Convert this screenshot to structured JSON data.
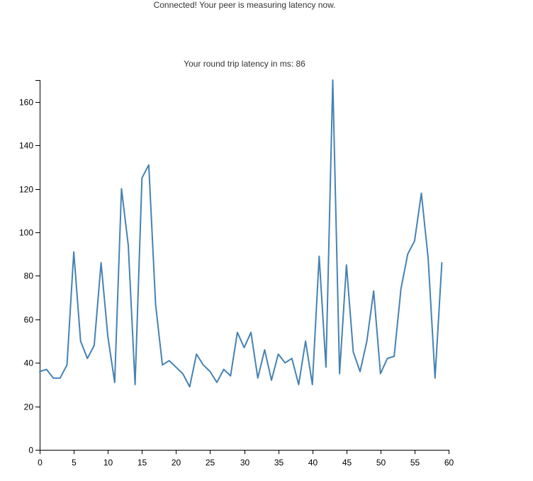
{
  "status": {
    "message": "Connected! Your peer is measuring latency now."
  },
  "chart_data": {
    "type": "line",
    "title": "Your round trip latency in ms: 86",
    "xlabel": "",
    "ylabel": "",
    "xlim": [
      0,
      60
    ],
    "ylim": [
      0,
      170
    ],
    "x_ticks": [
      0,
      5,
      10,
      15,
      20,
      25,
      30,
      35,
      40,
      45,
      50,
      55,
      60
    ],
    "y_ticks": [
      0,
      20,
      40,
      60,
      80,
      100,
      120,
      140,
      160
    ],
    "grid": false,
    "line_color": "#4682b4",
    "series": [
      {
        "x": [
          0,
          1,
          2,
          3,
          4,
          5,
          6,
          7,
          8,
          9,
          10,
          11,
          12,
          13,
          14,
          15,
          16,
          17,
          18,
          19,
          20,
          21,
          22,
          23,
          24,
          25,
          26,
          27,
          28,
          29,
          30,
          31,
          32,
          33,
          34,
          35,
          36,
          37,
          38,
          39,
          40,
          41,
          42,
          43,
          44,
          45,
          46,
          47,
          48,
          49,
          50,
          51,
          52,
          53,
          54,
          55,
          56,
          57,
          58,
          59
        ],
        "values": [
          36,
          37,
          33,
          33,
          39,
          91,
          50,
          42,
          48,
          86,
          52,
          31,
          120,
          94,
          30,
          125,
          131,
          67,
          39,
          41,
          38,
          35,
          29,
          44,
          39,
          36,
          31,
          37,
          34,
          54,
          47,
          54,
          33,
          46,
          32,
          44,
          40,
          42,
          30,
          50,
          30,
          89,
          38,
          170,
          35,
          85,
          45,
          36,
          50,
          73,
          35,
          42,
          43,
          74,
          90,
          96,
          118,
          88,
          33,
          86
        ]
      }
    ]
  }
}
